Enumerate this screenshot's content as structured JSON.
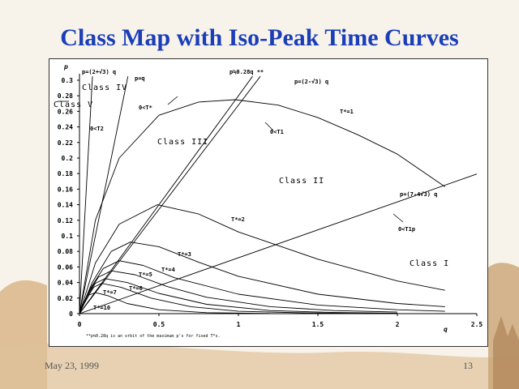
{
  "slide": {
    "title": "Class Map with Iso-Peak Time Curves",
    "date": "May 23, 1999",
    "page": "13"
  },
  "chart_data": {
    "type": "line",
    "title": "",
    "xlabel": "q",
    "ylabel": "p",
    "xlim": [
      0,
      2.5
    ],
    "ylim": [
      0,
      0.3
    ],
    "x_ticks": [
      "0",
      "0.5",
      "1",
      "1.5",
      "2",
      "2.5"
    ],
    "y_ticks": [
      "0",
      "0.02",
      "0.04",
      "0.06",
      "0.08",
      "0.1",
      "0.12",
      "0.14",
      "0.16",
      "0.18",
      "0.2",
      "0.22",
      "0.24",
      "0.26",
      "0.28",
      "0.3"
    ],
    "lines": [
      {
        "label": "p=(2+√3) q",
        "slope": 3.732
      },
      {
        "label": "p=q",
        "slope": 1.0
      },
      {
        "label": "p≒0.28q  **",
        "slope": 0.28
      },
      {
        "label": "p=(2-√3) q",
        "slope": 0.268
      },
      {
        "label": "p=(7-4√3) q",
        "slope": 0.0718
      }
    ],
    "curves": [
      {
        "label": "T*=1",
        "peak_q": 0.98,
        "peak_p": 0.275,
        "points": [
          [
            0,
            0
          ],
          [
            0.1,
            0.12
          ],
          [
            0.25,
            0.2
          ],
          [
            0.5,
            0.255
          ],
          [
            0.75,
            0.272
          ],
          [
            0.98,
            0.275
          ],
          [
            1.25,
            0.268
          ],
          [
            1.5,
            0.252
          ],
          [
            1.75,
            0.23
          ],
          [
            2.0,
            0.205
          ],
          [
            2.25,
            0.17
          ],
          [
            2.3,
            0.163
          ]
        ]
      },
      {
        "label": "T*=2",
        "peak_q": 0.49,
        "peak_p": 0.14,
        "points": [
          [
            0,
            0
          ],
          [
            0.1,
            0.065
          ],
          [
            0.25,
            0.115
          ],
          [
            0.49,
            0.14
          ],
          [
            0.75,
            0.128
          ],
          [
            1.0,
            0.105
          ],
          [
            1.5,
            0.07
          ],
          [
            2.0,
            0.042
          ],
          [
            2.3,
            0.03
          ]
        ]
      },
      {
        "label": "T*=3",
        "peak_q": 0.32,
        "peak_p": 0.092,
        "points": [
          [
            0,
            0
          ],
          [
            0.08,
            0.04
          ],
          [
            0.2,
            0.08
          ],
          [
            0.32,
            0.092
          ],
          [
            0.5,
            0.086
          ],
          [
            0.75,
            0.066
          ],
          [
            1.0,
            0.048
          ],
          [
            1.5,
            0.025
          ],
          [
            2.0,
            0.013
          ],
          [
            2.3,
            0.009
          ]
        ]
      },
      {
        "label": "T*=4",
        "peak_q": 0.25,
        "peak_p": 0.068,
        "points": [
          [
            0,
            0
          ],
          [
            0.06,
            0.03
          ],
          [
            0.15,
            0.058
          ],
          [
            0.25,
            0.068
          ],
          [
            0.4,
            0.062
          ],
          [
            0.6,
            0.046
          ],
          [
            1.0,
            0.025
          ],
          [
            1.5,
            0.011
          ],
          [
            2.0,
            0.005
          ],
          [
            2.3,
            0.003
          ]
        ]
      },
      {
        "label": "T*=5",
        "peak_q": 0.2,
        "peak_p": 0.055,
        "points": [
          [
            0,
            0
          ],
          [
            0.05,
            0.025
          ],
          [
            0.12,
            0.047
          ],
          [
            0.2,
            0.055
          ],
          [
            0.35,
            0.05
          ],
          [
            0.55,
            0.035
          ],
          [
            0.8,
            0.021
          ],
          [
            1.2,
            0.009
          ],
          [
            1.6,
            0.004
          ],
          [
            2.0,
            0.002
          ]
        ]
      },
      {
        "label": "T*=6",
        "peak_q": 0.16,
        "peak_p": 0.045,
        "points": [
          [
            0,
            0
          ],
          [
            0.04,
            0.02
          ],
          [
            0.1,
            0.039
          ],
          [
            0.16,
            0.045
          ],
          [
            0.3,
            0.04
          ],
          [
            0.5,
            0.026
          ],
          [
            0.8,
            0.012
          ],
          [
            1.2,
            0.004
          ],
          [
            1.6,
            0.0015
          ],
          [
            2.0,
            0.0005
          ]
        ]
      },
      {
        "label": "T*=7",
        "peak_q": 0.14,
        "peak_p": 0.039,
        "points": [
          [
            0,
            0
          ],
          [
            0.04,
            0.018
          ],
          [
            0.09,
            0.034
          ],
          [
            0.14,
            0.039
          ],
          [
            0.26,
            0.034
          ],
          [
            0.45,
            0.02
          ],
          [
            0.7,
            0.009
          ],
          [
            1.0,
            0.003
          ],
          [
            1.4,
            0.001
          ],
          [
            1.8,
            0.0002
          ]
        ]
      },
      {
        "label": "T*=10",
        "peak_q": 0.1,
        "peak_p": 0.027,
        "points": [
          [
            0,
            0
          ],
          [
            0.03,
            0.013
          ],
          [
            0.06,
            0.024
          ],
          [
            0.1,
            0.027
          ],
          [
            0.18,
            0.023
          ],
          [
            0.3,
            0.013
          ],
          [
            0.5,
            0.005
          ],
          [
            0.8,
            0.0013
          ],
          [
            1.2,
            0.0002
          ]
        ]
      }
    ],
    "annotations": {
      "line_p_2plus": "p=(2+√3) q",
      "line_p_q": "p=q",
      "line_028": "p≒0.28q  **",
      "line_2minus": "p=(2-√3) q",
      "line_7minus": "p=(7-4√3) q",
      "class1": "Class I",
      "class2": "Class II",
      "class3": "Class III",
      "class4": "Class IV",
      "class5": "Class V",
      "cond_T": "0<T*",
      "cond_T1": "0<T1",
      "cond_T2": "0<T2",
      "cond_T1p": "0<T1p",
      "T1": "T*=1",
      "T2": "T*=2",
      "T3": "T*=3",
      "T4": "T*=4",
      "T5": "T*=5",
      "T6": "T*=6",
      "T7": "T*=7",
      "T10": "T*=10",
      "footnote": "**p≒0.28q is an orbit of the maximum p's for fixed T*s."
    }
  }
}
